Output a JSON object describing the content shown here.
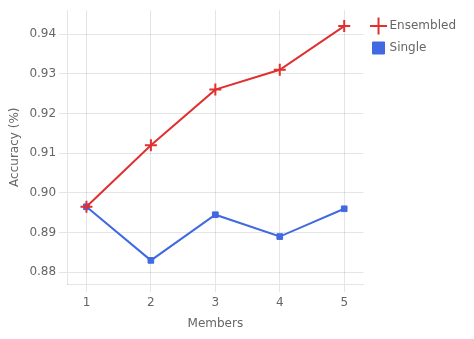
{
  "chart_data": {
    "type": "line",
    "x": [
      1,
      2,
      3,
      4,
      5
    ],
    "series": [
      {
        "name": "Single",
        "color": "#4169e1",
        "values": [
          0.8965,
          0.883,
          0.8945,
          0.889,
          0.896
        ],
        "marker": "square",
        "line_style": "solid"
      },
      {
        "name": "Ensembled",
        "color": "#e03030",
        "values": [
          0.8965,
          0.912,
          0.926,
          0.931,
          0.942
        ],
        "marker": "plus",
        "line_style": "solid"
      }
    ],
    "x_label": "Members",
    "y_label": "Accuracy (%)",
    "xlim": [
      0.7,
      5.3
    ],
    "xticks": [
      1,
      2,
      3,
      4,
      5
    ],
    "ylim": [
      0.877,
      0.946
    ],
    "yticks": [
      0.88,
      0.89,
      {
        "value": 0.9,
        "label": "0.90"
      },
      0.91,
      0.92,
      0.93,
      0.94
    ],
    "grid": true,
    "legend": "upper right"
  }
}
